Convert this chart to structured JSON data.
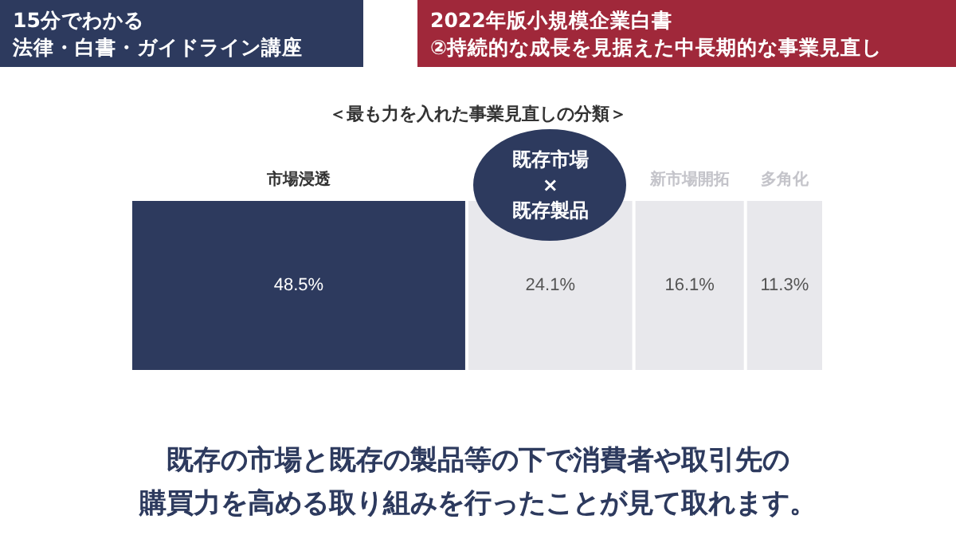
{
  "chart_data": {
    "type": "bar",
    "orientation": "horizontal",
    "stacked": true,
    "legend": false,
    "title": "2022年版小規模企業白書\n②持続的な成長を見据えた中長期的な事業見直し",
    "subtitle": "＜最も力を入れた事業見直しの分類＞",
    "categories": [
      null
    ],
    "series": [
      {
        "name": "市場浸透",
        "color": "#2d3a5e",
        "values": [
          48.5
        ],
        "value_labels": [
          "48.5%"
        ]
      },
      {
        "color": "#e8e8ec",
        "values": [
          24.1
        ],
        "value_labels": [
          "24.1%"
        ]
      },
      {
        "name": "新市場開拓",
        "color": "#e8e8ec",
        "values": [
          16.1
        ],
        "value_labels": [
          "16.1%"
        ]
      },
      {
        "name": "多角化",
        "color": "#e8e8ec",
        "values": [
          11.3
        ],
        "value_labels": [
          "11.3%"
        ]
      }
    ],
    "annotations": [
      "15分でわかる",
      "法律・白書・ガイドライン講座",
      "既存市場\n×\n既存製品",
      "既存の市場と既存の製品等の下で消費者や取引先の",
      "購買力を高める取り組みを行ったことが見て取れます。"
    ]
  }
}
